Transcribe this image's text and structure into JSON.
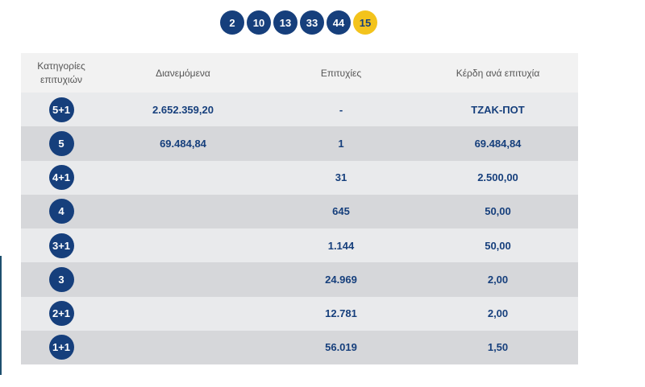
{
  "drawn_numbers": [
    "2",
    "10",
    "13",
    "33",
    "44"
  ],
  "bonus_number": "15",
  "table": {
    "headers": {
      "category_line1": "Κατηγορίες",
      "category_line2": "επιτυχιών",
      "distributed": "Διανεμόμενα",
      "winners": "Επιτυχίες",
      "prize": "Κέρδη ανά επιτυχία"
    },
    "rows": [
      {
        "category": "5+1",
        "distributed": "2.652.359,20",
        "winners": "-",
        "prize": "ΤΖΑΚ-ΠΟΤ"
      },
      {
        "category": "5",
        "distributed": "69.484,84",
        "winners": "1",
        "prize": "69.484,84"
      },
      {
        "category": "4+1",
        "distributed": "",
        "winners": "31",
        "prize": "2.500,00"
      },
      {
        "category": "4",
        "distributed": "",
        "winners": "645",
        "prize": "50,00"
      },
      {
        "category": "3+1",
        "distributed": "",
        "winners": "1.144",
        "prize": "50,00"
      },
      {
        "category": "3",
        "distributed": "",
        "winners": "24.969",
        "prize": "2,00"
      },
      {
        "category": "2+1",
        "distributed": "",
        "winners": "12.781",
        "prize": "2,00"
      },
      {
        "category": "1+1",
        "distributed": "",
        "winners": "56.019",
        "prize": "1,50"
      }
    ]
  },
  "colors": {
    "ball": "#163f7c",
    "bonus_ball": "#f3c31c",
    "row_light": "#e9eaec",
    "row_dark": "#d6d7da",
    "header_bg": "#f2f2f2"
  }
}
